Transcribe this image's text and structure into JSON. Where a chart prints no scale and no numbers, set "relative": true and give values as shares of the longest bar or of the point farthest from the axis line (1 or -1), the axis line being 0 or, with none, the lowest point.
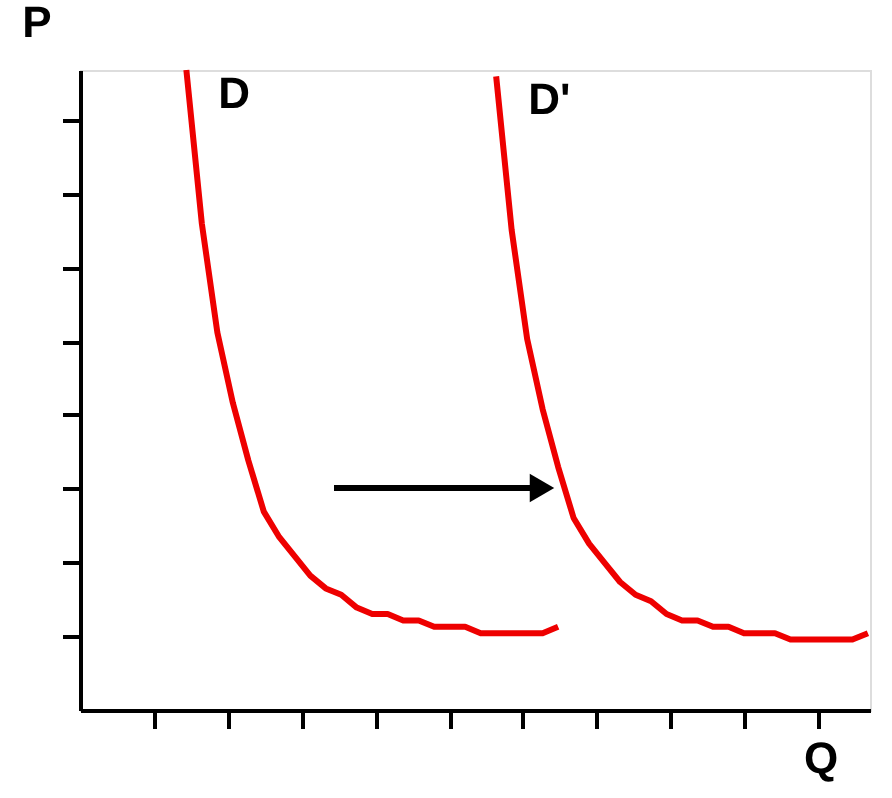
{
  "chart_data": {
    "type": "line",
    "relative": true,
    "xlabel": "Q",
    "ylabel": "P",
    "categories": [
      null,
      null,
      null,
      null,
      null,
      null,
      null,
      null,
      null,
      null,
      null,
      null,
      null,
      null,
      null,
      null,
      null,
      null,
      null,
      null,
      null,
      null,
      null,
      null,
      null,
      null,
      null,
      null,
      null,
      null,
      null,
      null,
      null,
      null,
      null,
      null,
      null,
      null,
      null,
      null,
      null,
      null,
      null,
      null,
      null,
      null,
      null,
      null,
      null,
      null,
      null
    ],
    "series": [
      {
        "name": "D",
        "color": "#ee0000",
        "values": [
          null,
          null,
          null,
          null,
          null,
          null,
          1.0,
          0.76,
          0.59,
          0.48,
          0.39,
          0.31,
          0.27,
          0.24,
          0.21,
          0.19,
          0.18,
          0.16,
          0.15,
          0.15,
          0.14,
          0.14,
          0.13,
          0.13,
          0.13,
          0.12,
          0.12,
          0.12,
          0.12,
          0.12,
          0.13,
          null,
          null,
          null,
          null,
          null,
          null,
          null,
          null,
          null,
          null,
          null,
          null,
          null,
          null,
          null,
          null,
          null,
          null,
          null,
          null
        ]
      },
      {
        "name": "D'",
        "color": "#ee0000",
        "values": [
          null,
          null,
          null,
          null,
          null,
          null,
          null,
          null,
          null,
          null,
          null,
          null,
          null,
          null,
          null,
          null,
          null,
          null,
          null,
          null,
          null,
          null,
          null,
          null,
          null,
          null,
          0.99,
          0.75,
          0.58,
          0.47,
          0.38,
          0.3,
          0.26,
          0.23,
          0.2,
          0.18,
          0.17,
          0.15,
          0.14,
          0.14,
          0.13,
          0.13,
          0.12,
          0.12,
          0.12,
          0.11,
          0.11,
          0.11,
          0.11,
          0.11,
          0.12
        ]
      }
    ],
    "marker": "none",
    "line_style": "solid"
  }
}
